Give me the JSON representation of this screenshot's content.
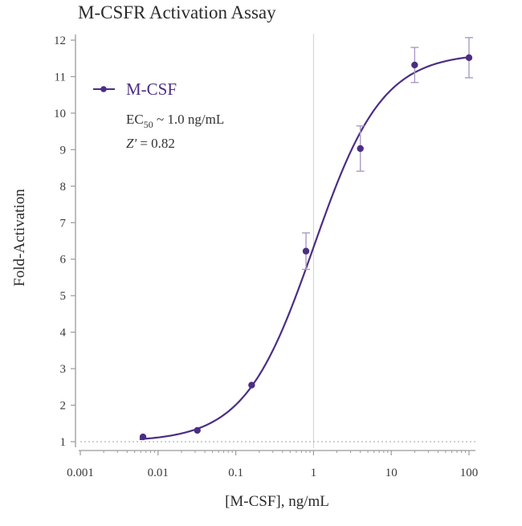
{
  "chart_data": {
    "type": "scatter",
    "title": "M-CSFR Activation Assay",
    "xlabel": "[M-CSF], ng/mL",
    "ylabel": "Fold-Activation",
    "x_scale": "log",
    "xlim": [
      0.001,
      100
    ],
    "ylim": [
      1,
      12
    ],
    "x_ticks": [
      0.001,
      0.01,
      0.1,
      1,
      10,
      100
    ],
    "x_tick_labels": [
      "0.001",
      "0.01",
      "0.1",
      "1",
      "10",
      "100"
    ],
    "y_ticks": [
      1,
      2,
      3,
      4,
      5,
      6,
      7,
      8,
      9,
      10,
      11,
      12
    ],
    "y_tick_labels": [
      "1",
      "2",
      "3",
      "4",
      "5",
      "6",
      "7",
      "8",
      "9",
      "10",
      "11",
      "12"
    ],
    "grid": false,
    "baseline_y": 1,
    "reference_line_x": 1,
    "legend_position": "top-left",
    "series": [
      {
        "name": "M-CSF",
        "color": "#4b2e83",
        "points": [
          {
            "x": 0.0064,
            "y": 1.13,
            "err": 0
          },
          {
            "x": 0.032,
            "y": 1.31,
            "err": 0
          },
          {
            "x": 0.16,
            "y": 2.55,
            "err": 0
          },
          {
            "x": 0.8,
            "y": 6.22,
            "err": 0.5
          },
          {
            "x": 4.0,
            "y": 9.03,
            "err": 0.62
          },
          {
            "x": 20,
            "y": 11.32,
            "err": 0.48
          },
          {
            "x": 100,
            "y": 11.52,
            "err": 0.55
          }
        ],
        "fit": {
          "model": "4PL",
          "bottom": 1.0,
          "top": 11.65,
          "ec50": 1.0,
          "hill": 0.98
        }
      }
    ],
    "annotations": {
      "ec50_prefix": "EC",
      "ec50_subscript": "50",
      "ec50_suffix": " ~ 1.0 ng/mL",
      "zprime_symbol": "Z'",
      "zprime_value": " = 0.82"
    }
  }
}
